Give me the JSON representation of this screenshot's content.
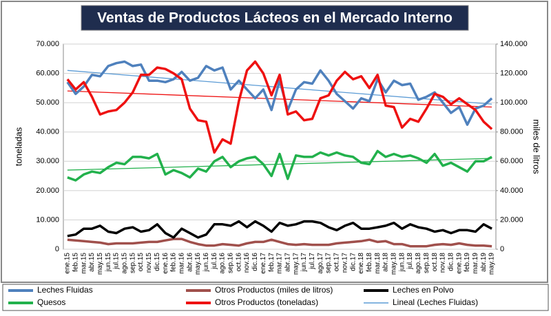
{
  "chart_data": {
    "type": "line",
    "title": "Ventas de Productos Lácteos en el Mercado Interno",
    "y_label": "toneladas",
    "y2_label": "miles de litros",
    "categories": [
      "ene.15",
      "feb.15",
      "mar.15",
      "abr.15",
      "may.15",
      "jun.15",
      "jul.15",
      "ago.15",
      "sep.15",
      "oct.15",
      "nov.15",
      "dic.15",
      "ene.16",
      "feb.16",
      "mar.16",
      "abr.16",
      "may.16",
      "jun.16",
      "jul.16",
      "ago.16",
      "sep.16",
      "oct.16",
      "nov.16",
      "dic.16",
      "ene.17",
      "feb.17",
      "mar.17",
      "abr.17",
      "may.17",
      "jun.17",
      "jul.17",
      "ago.17",
      "sep.17",
      "oct.17",
      "nov.17",
      "dic.17",
      "ene.18",
      "feb.18",
      "mar.18",
      "abr.18",
      "may.18",
      "jun.18",
      "jul.18",
      "ago.18",
      "sep.18",
      "oct.18",
      "nov.18",
      "dic.18",
      "ene.19",
      "feb.19",
      "mar.19",
      "abr.19",
      "may.19"
    ],
    "ylim": [
      0,
      70000
    ],
    "yticks": [
      0,
      {
        "value": 10000,
        "label": "10.000"
      },
      {
        "value": 20000,
        "label": "20.000"
      },
      {
        "value": 30000,
        "label": "30.000"
      },
      {
        "value": 40000,
        "label": "40.000"
      },
      {
        "value": 50000,
        "label": "50.000"
      },
      {
        "value": 60000,
        "label": "60.000"
      },
      {
        "value": 70000,
        "label": "70.000"
      }
    ],
    "y2lim": [
      0,
      140000
    ],
    "y2ticks": [
      0,
      {
        "value": 20000,
        "label": "20.000"
      },
      {
        "value": 40000,
        "label": "40.000"
      },
      {
        "value": 60000,
        "label": "60.000"
      },
      {
        "value": 80000,
        "label": "80.000"
      },
      {
        "value": 100000,
        "label": "100.000"
      },
      {
        "value": 120000,
        "label": "120.000"
      },
      {
        "value": 140000,
        "label": "140.000"
      }
    ],
    "grid": true,
    "series": [
      {
        "name": "Leches Fluidas",
        "color": "#4f81bd",
        "values": [
          57000,
          53000,
          55500,
          59500,
          59000,
          62500,
          63500,
          64000,
          62500,
          63000,
          57500,
          57500,
          57000,
          58000,
          60500,
          57500,
          58500,
          62500,
          61000,
          62000,
          54500,
          57500,
          54500,
          51500,
          54500,
          47500,
          57500,
          47500,
          54500,
          57000,
          56500,
          61000,
          57500,
          53000,
          50500,
          48000,
          51500,
          50500,
          58000,
          53500,
          57500,
          56000,
          56500,
          51000,
          52000,
          53500,
          50000,
          46500,
          48500,
          42500,
          48000,
          49000,
          51500
        ]
      },
      {
        "name": "Otros Productos (miles de litros)",
        "color": "#a0504c",
        "axis": "y2",
        "values": [
          6500,
          6000,
          5500,
          5000,
          4500,
          3500,
          4000,
          4000,
          4000,
          4500,
          5000,
          5000,
          6000,
          7000,
          7000,
          5000,
          3500,
          2500,
          2500,
          3500,
          3000,
          2500,
          4000,
          5000,
          5000,
          6500,
          5000,
          3500,
          3000,
          3500,
          3000,
          3000,
          3000,
          4000,
          4500,
          5000,
          5500,
          6500,
          5000,
          5500,
          3500,
          3500,
          2000,
          2000,
          2000,
          3000,
          3500,
          3000,
          4000,
          3000,
          2500,
          2500,
          2000
        ]
      },
      {
        "name": "Leches en Polvo",
        "color": "#000000",
        "values": [
          4500,
          5000,
          7000,
          7000,
          8000,
          6000,
          5500,
          7000,
          7500,
          6000,
          6500,
          8500,
          5500,
          4000,
          7000,
          5500,
          4000,
          5000,
          8500,
          8500,
          8000,
          9500,
          7500,
          9500,
          8000,
          6000,
          9000,
          8000,
          8500,
          9500,
          9500,
          9000,
          7500,
          6500,
          8000,
          9000,
          7000,
          7000,
          7500,
          8000,
          9000,
          7000,
          8500,
          7500,
          7000,
          6000,
          6500,
          5500,
          6500,
          6500,
          6000,
          8500,
          7000
        ]
      },
      {
        "name": "Quesos",
        "color": "#22b14c",
        "values": [
          24500,
          23500,
          25500,
          26500,
          26000,
          28000,
          29500,
          29000,
          31500,
          31500,
          31000,
          32500,
          25500,
          27000,
          26000,
          24500,
          27500,
          26500,
          30000,
          31500,
          28000,
          30000,
          31000,
          31500,
          29000,
          25000,
          32500,
          24000,
          32000,
          31500,
          31500,
          33000,
          32000,
          33000,
          32000,
          31500,
          29500,
          29000,
          33500,
          31500,
          32500,
          31500,
          32000,
          31000,
          29500,
          32500,
          28500,
          29500,
          28000,
          26500,
          30000,
          30000,
          31500
        ]
      },
      {
        "name": "Otros Productos (toneladas)",
        "color": "#ee1111",
        "values": [
          58000,
          54500,
          57000,
          52000,
          46000,
          47000,
          47500,
          50000,
          53500,
          59500,
          59500,
          62000,
          61500,
          60000,
          58000,
          48000,
          44000,
          43500,
          33000,
          37500,
          36000,
          50500,
          61000,
          64000,
          60000,
          52500,
          59500,
          46000,
          47000,
          44000,
          44500,
          51500,
          52500,
          57500,
          60500,
          58000,
          59000,
          55000,
          59500,
          49000,
          48500,
          41500,
          44500,
          43500,
          48000,
          53000,
          52000,
          49500,
          51500,
          49500,
          47500,
          43500,
          41000
        ]
      }
    ],
    "trendlines": [
      {
        "name": "Lineal (Leches Fluidas)",
        "color": "#5b9bd5",
        "values": [
          61000,
          49500
        ]
      },
      {
        "color": "#ee1111",
        "values": [
          54000,
          48500
        ]
      },
      {
        "color": "#22b14c",
        "values": [
          27000,
          31000
        ]
      }
    ]
  }
}
